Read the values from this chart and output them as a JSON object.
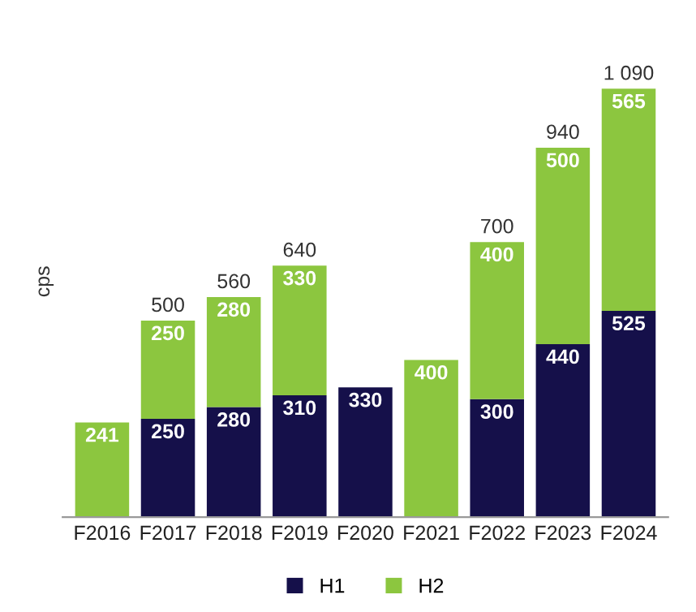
{
  "chart_data": {
    "type": "bar",
    "stacked": true,
    "ylabel": "cps",
    "categories": [
      "F2016",
      "F2017",
      "F2018",
      "F2019",
      "F2020",
      "F2021",
      "F2022",
      "F2023",
      "F2024"
    ],
    "series": [
      {
        "name": "H1",
        "color": "#15104a",
        "values": [
          null,
          250,
          280,
          310,
          330,
          null,
          300,
          440,
          525
        ]
      },
      {
        "name": "H2",
        "color": "#8cc63f",
        "values": [
          241,
          250,
          280,
          330,
          null,
          400,
          400,
          500,
          565
        ]
      }
    ],
    "totals": [
      null,
      "500",
      "560",
      "640",
      null,
      null,
      "700",
      "940",
      "1 090"
    ],
    "data_labels": true,
    "tick_labels": "x",
    "grid": false,
    "legend": "bottom"
  }
}
